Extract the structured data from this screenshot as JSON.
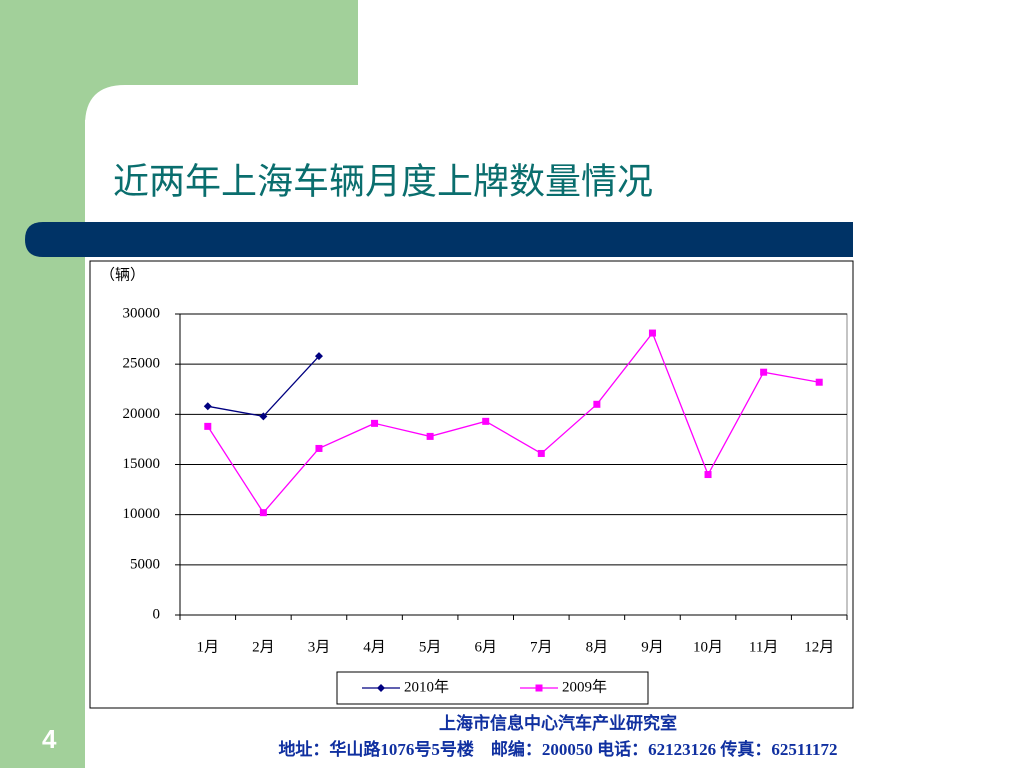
{
  "slide": {
    "page_number": "4",
    "footer_org": "上海市信息中心汽车产业研究室",
    "footer_address": "地址：华山路1076号5号楼　邮编：200050  电话：62123126  传真：62511172"
  },
  "chart_data": {
    "type": "line",
    "title": "近两年上海车辆月度上牌数量情况",
    "y_label": "（辆）",
    "categories": [
      "1月",
      "2月",
      "3月",
      "4月",
      "5月",
      "6月",
      "7月",
      "8月",
      "9月",
      "10月",
      "11月",
      "12月"
    ],
    "series": [
      {
        "name": "2010年",
        "color": "#000080",
        "marker": "diamond",
        "values": [
          20800,
          19800,
          25800,
          null,
          null,
          null,
          null,
          null,
          null,
          null,
          null,
          null
        ]
      },
      {
        "name": "2009年",
        "color": "#ff00ff",
        "marker": "square",
        "values": [
          18800,
          10200,
          16600,
          19100,
          17800,
          19300,
          16100,
          21000,
          28100,
          14000,
          24200,
          23200
        ]
      }
    ],
    "ylim": [
      0,
      30000
    ],
    "yticks": [
      0,
      5000,
      10000,
      15000,
      20000,
      25000,
      30000
    ],
    "grid": true,
    "legend": "bottom"
  }
}
